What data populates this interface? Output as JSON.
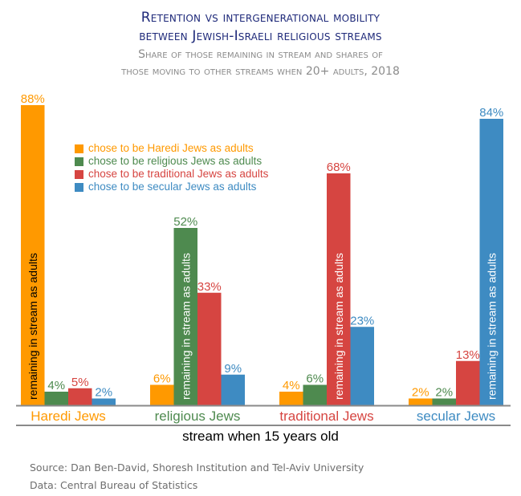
{
  "chart_data": {
    "type": "bar",
    "title": "Retention vs intergenerational mobility between Jewish-Israeli religious streams",
    "title_lines": [
      "Retention vs intergenerational mobility",
      "between Jewish-Israeli religious streams"
    ],
    "subtitle": "Share of those remaining in stream and shares of those moving to other streams when 20+ adults, 2018",
    "subtitle_lines": [
      "Share of those remaining in stream and shares of",
      "those moving to other streams when 20+ adults, 2018"
    ],
    "xlabel": "stream when 15 years old",
    "ylabel": "",
    "ylim": [
      0,
      100
    ],
    "grid": false,
    "categories": [
      "Haredi Jews",
      "religious Jews",
      "traditional Jews",
      "secular Jews"
    ],
    "category_colors": [
      "#ff9900",
      "#4e8a4f",
      "#d64541",
      "#3e8bc2"
    ],
    "series": [
      {
        "name": "chose to be Haredi Jews as adults",
        "color": "#ff9900",
        "values": [
          88,
          6,
          4,
          2
        ]
      },
      {
        "name": "chose to be religious Jews as adults",
        "color": "#4e8a4f",
        "values": [
          4,
          52,
          6,
          2
        ]
      },
      {
        "name": "chose to be traditional Jews as adults",
        "color": "#d64541",
        "values": [
          5,
          33,
          68,
          13
        ]
      },
      {
        "name": "chose to be secular Jews as adults",
        "color": "#3e8bc2",
        "values": [
          2,
          9,
          23,
          84
        ]
      }
    ],
    "value_label_suffix": "%",
    "in_bar_annotation": "remaining in stream as adults",
    "legend_position": "top-left"
  },
  "source": {
    "line1": "Source: Dan Ben-David, Shoresh Institution and Tel-Aviv University",
    "line2": "Data: Central Bureau of Statistics"
  }
}
